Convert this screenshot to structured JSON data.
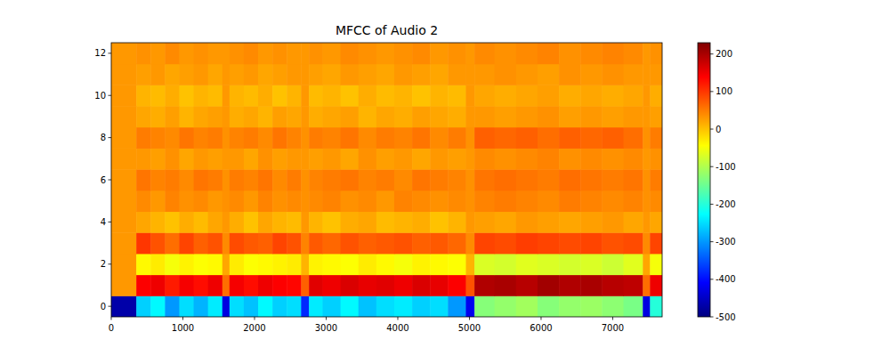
{
  "chart_data": {
    "type": "heatmap",
    "title": "MFCC of Audio 2",
    "x_edges": [
      0,
      350,
      550,
      750,
      950,
      1150,
      1350,
      1550,
      1650,
      1850,
      2050,
      2250,
      2450,
      2650,
      2760,
      2950,
      3200,
      3450,
      3700,
      3950,
      4200,
      4450,
      4700,
      4950,
      5070,
      5350,
      5650,
      5950,
      6250,
      6550,
      6850,
      7150,
      7420,
      7520,
      7690
    ],
    "y": [
      0,
      1,
      2,
      3,
      4,
      5,
      6,
      7,
      8,
      9,
      10,
      11,
      12
    ],
    "cells": [
      [
        -470,
        -260,
        -230,
        -300,
        -250,
        -280,
        -240,
        -430,
        -250,
        -270,
        -230,
        -260,
        -250,
        -380,
        -240,
        -260,
        -230,
        -270,
        -250,
        -240,
        -260,
        -250,
        -300,
        -420,
        -130,
        -120,
        -110,
        -130,
        -120,
        -115,
        -125,
        -140,
        -430,
        -200
      ],
      [
        30,
        140,
        150,
        120,
        145,
        130,
        150,
        60,
        145,
        130,
        150,
        140,
        135,
        70,
        160,
        150,
        165,
        155,
        160,
        150,
        165,
        155,
        140,
        80,
        195,
        200,
        190,
        205,
        195,
        200,
        190,
        185,
        60,
        150
      ],
      [
        30,
        -40,
        -30,
        -50,
        -35,
        -45,
        -40,
        20,
        -30,
        -45,
        -40,
        -35,
        -30,
        10,
        -35,
        -40,
        -45,
        -30,
        -40,
        -50,
        -35,
        -40,
        -45,
        10,
        -70,
        -75,
        -65,
        -70,
        -75,
        -70,
        -80,
        -65,
        20,
        -50
      ],
      [
        30,
        100,
        80,
        60,
        90,
        70,
        80,
        40,
        85,
        75,
        70,
        90,
        80,
        45,
        75,
        65,
        80,
        70,
        75,
        80,
        70,
        75,
        65,
        40,
        90,
        85,
        95,
        90,
        85,
        90,
        80,
        85,
        40,
        90
      ],
      [
        30,
        20,
        10,
        0,
        15,
        5,
        20,
        30,
        15,
        0,
        20,
        10,
        5,
        30,
        10,
        0,
        15,
        20,
        5,
        10,
        15,
        0,
        10,
        30,
        25,
        20,
        30,
        25,
        20,
        25,
        30,
        20,
        30,
        20
      ],
      [
        30,
        40,
        30,
        45,
        35,
        40,
        30,
        35,
        40,
        30,
        45,
        35,
        40,
        35,
        40,
        45,
        35,
        40,
        30,
        45,
        40,
        35,
        40,
        35,
        45,
        50,
        45,
        40,
        50,
        45,
        40,
        45,
        35,
        40
      ],
      [
        30,
        55,
        45,
        50,
        40,
        55,
        50,
        35,
        50,
        45,
        55,
        40,
        50,
        35,
        45,
        50,
        55,
        45,
        50,
        40,
        55,
        50,
        45,
        35,
        55,
        60,
        55,
        50,
        60,
        55,
        50,
        55,
        35,
        50
      ],
      [
        30,
        30,
        25,
        35,
        20,
        30,
        25,
        30,
        30,
        20,
        35,
        25,
        30,
        30,
        25,
        30,
        20,
        35,
        25,
        30,
        20,
        30,
        25,
        30,
        40,
        35,
        40,
        45,
        35,
        40,
        35,
        40,
        30,
        35
      ],
      [
        30,
        50,
        45,
        40,
        55,
        45,
        50,
        35,
        45,
        50,
        40,
        55,
        45,
        35,
        50,
        45,
        55,
        40,
        50,
        45,
        55,
        40,
        50,
        35,
        70,
        65,
        70,
        60,
        70,
        65,
        70,
        60,
        35,
        50
      ],
      [
        30,
        20,
        15,
        25,
        10,
        20,
        25,
        30,
        15,
        20,
        10,
        25,
        20,
        30,
        15,
        20,
        25,
        10,
        20,
        15,
        25,
        20,
        15,
        30,
        30,
        25,
        30,
        35,
        25,
        30,
        25,
        30,
        30,
        25
      ],
      [
        30,
        10,
        5,
        15,
        0,
        10,
        5,
        30,
        10,
        5,
        15,
        0,
        10,
        30,
        5,
        10,
        0,
        15,
        5,
        10,
        0,
        10,
        5,
        30,
        20,
        15,
        20,
        25,
        15,
        20,
        15,
        20,
        30,
        15
      ],
      [
        30,
        25,
        30,
        20,
        25,
        30,
        20,
        30,
        25,
        30,
        20,
        25,
        30,
        30,
        25,
        20,
        30,
        25,
        20,
        30,
        25,
        20,
        30,
        30,
        30,
        35,
        30,
        25,
        35,
        30,
        35,
        30,
        30,
        30
      ],
      [
        30,
        35,
        30,
        40,
        30,
        35,
        30,
        30,
        35,
        40,
        30,
        35,
        30,
        30,
        35,
        30,
        40,
        35,
        30,
        35,
        40,
        30,
        35,
        30,
        40,
        35,
        40,
        45,
        35,
        40,
        45,
        40,
        30,
        35
      ]
    ],
    "xlim": [
      0,
      7690
    ],
    "ylim": [
      -0.5,
      12.5
    ],
    "xticks": [
      0,
      1000,
      2000,
      3000,
      4000,
      5000,
      6000,
      7000
    ],
    "yticks": [
      0,
      2,
      4,
      6,
      8,
      10,
      12
    ],
    "colorbar": {
      "range": [
        -500,
        230
      ],
      "ticks": [
        -500,
        -400,
        -300,
        -200,
        -100,
        0,
        100,
        200
      ]
    }
  }
}
